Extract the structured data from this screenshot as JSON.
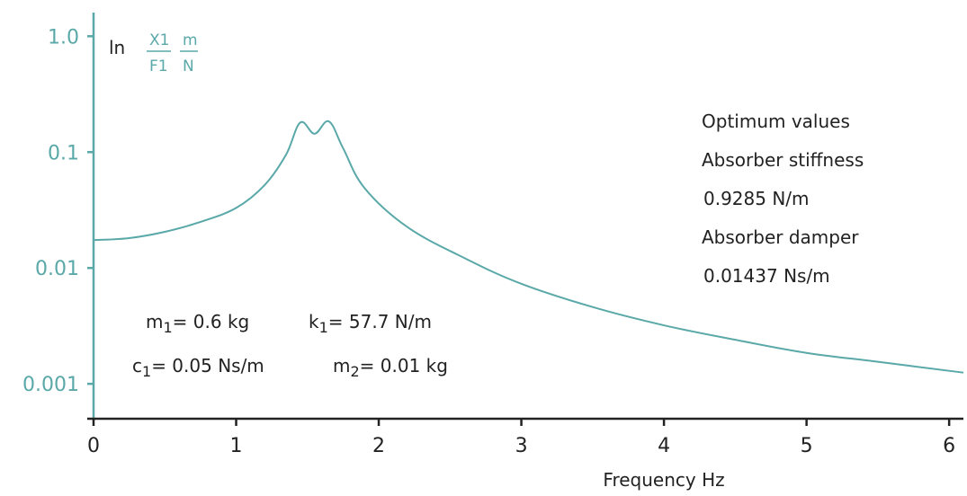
{
  "chart_data": {
    "type": "line",
    "title": "",
    "xlabel": "Frequency Hz",
    "ylabel": {
      "prefix": "ln",
      "numerator": "X1",
      "denominator": "F1",
      "unit_numerator": "m",
      "unit_denominator": "N"
    },
    "xlim": [
      0,
      6.1
    ],
    "ylim": [
      0.0005,
      1.6
    ],
    "y_scale": "log",
    "x_ticks": [
      {
        "value": 0,
        "label": "0"
      },
      {
        "value": 1,
        "label": "1"
      },
      {
        "value": 2,
        "label": "2"
      },
      {
        "value": 3,
        "label": "3"
      },
      {
        "value": 4,
        "label": "4"
      },
      {
        "value": 5,
        "label": "5"
      },
      {
        "value": 6,
        "label": "6"
      }
    ],
    "y_ticks": [
      {
        "value": 1.0,
        "label": "1.0"
      },
      {
        "value": 0.1,
        "label": "0.1"
      },
      {
        "value": 0.01,
        "label": "0.01"
      },
      {
        "value": 0.001,
        "label": "0.001"
      }
    ],
    "grid": false,
    "line_color": "#5aa8a8",
    "axis_color": "#5aa8a8",
    "series": [
      {
        "x": [
          0,
          0.25,
          0.5,
          0.75,
          1.0,
          1.2,
          1.35,
          1.45,
          1.55,
          1.65,
          1.75,
          1.9,
          2.2,
          2.6,
          3.0,
          3.5,
          4.0,
          4.5,
          5.0,
          5.5,
          6.1
        ],
        "y": [
          0.0174,
          0.0181,
          0.0205,
          0.025,
          0.033,
          0.052,
          0.095,
          0.18,
          0.144,
          0.184,
          0.108,
          0.049,
          0.0226,
          0.0122,
          0.0073,
          0.0046,
          0.0032,
          0.0024,
          0.00185,
          0.00155,
          0.00125
        ]
      }
    ],
    "annotations": {
      "optimum_title": "Optimum values",
      "stiffness_label": "Absorber stiffness",
      "stiffness_value": "0.9285 N/m",
      "damper_label": "Absorber damper",
      "damper_value": "0.01437 Ns/m",
      "m1_sym": "m",
      "m1_sub": "1",
      "m1_val": "= 0.6 kg",
      "k1_sym": "k",
      "k1_sub": "1",
      "k1_val": "= 57.7 N/m",
      "c1_sym": "c",
      "c1_sub": "1",
      "c1_val": "= 0.05 Ns/m",
      "m2_sym": "m",
      "m2_sub": "2",
      "m2_val": "= 0.01 kg"
    }
  }
}
